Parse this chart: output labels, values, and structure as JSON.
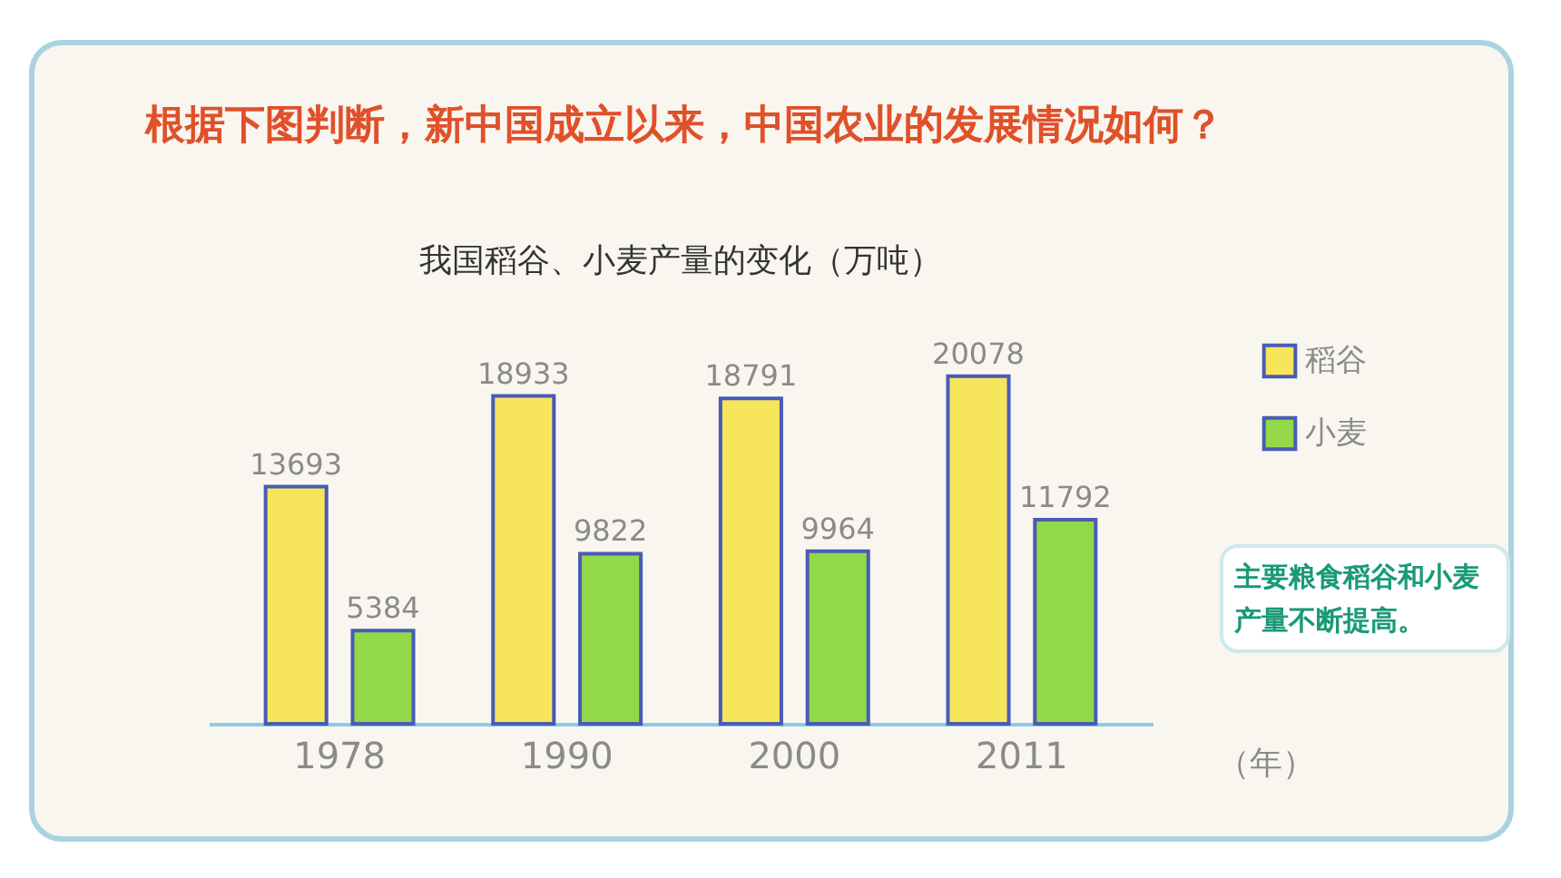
{
  "chart_data": {
    "type": "bar",
    "title": "根据下图判断，新中国成立以来，中国农业的发展情况如何？",
    "subtitle": "我国稻谷、小麦产量的变化（万吨）",
    "xlabel": "（年）",
    "categories": [
      "1978",
      "1990",
      "2000",
      "2011"
    ],
    "series": [
      {
        "name": "稻谷",
        "color": "#f7e55c",
        "values": [
          13693,
          18933,
          18791,
          20078
        ]
      },
      {
        "name": "小麦",
        "color": "#92d848",
        "values": [
          5384,
          9822,
          9964,
          11792
        ]
      }
    ],
    "data_labels": true,
    "legend": "right",
    "grid": false,
    "annotations": [
      "主要粮食稻谷和小麦产量不断提高。"
    ]
  }
}
